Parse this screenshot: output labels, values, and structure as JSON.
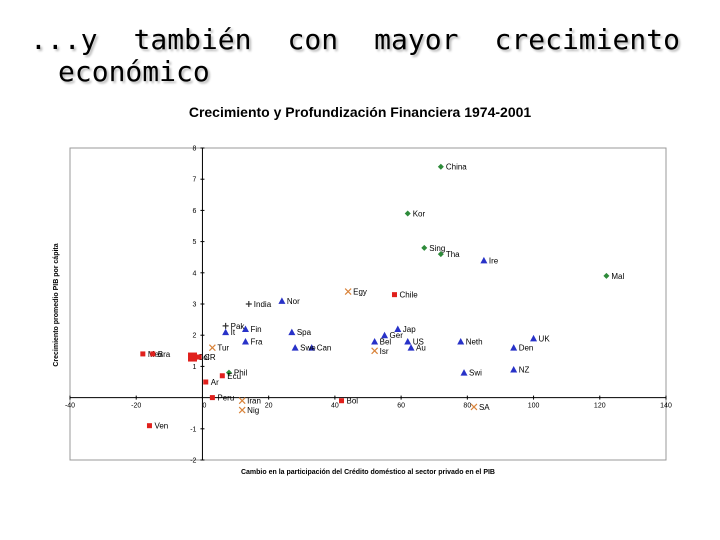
{
  "slide": {
    "title_words": [
      "...y",
      "también",
      "con",
      "mayor",
      "crecimiento"
    ],
    "title_line2": "económico"
  },
  "colors": {
    "diamond": "#2e8b3a",
    "square": "#e0201c",
    "triangle": "#2832c8",
    "plus": "#333333",
    "cross": "#d9843b"
  },
  "chart_data": {
    "type": "scatter",
    "title": "Crecimiento y Profundización Financiera 1974-2001",
    "xlabel": "Cambio en la participación del Crédito doméstico al sector privado en el PIB",
    "ylabel": "Crecimiento promedio PIB por cápita",
    "xlim": [
      -40,
      140
    ],
    "ylim": [
      -2,
      8
    ],
    "xticks": [
      -40,
      -20,
      0,
      20,
      40,
      60,
      80,
      100,
      120,
      140
    ],
    "yticks": [
      -2,
      -1,
      1,
      2,
      3,
      4,
      5,
      6,
      7,
      8
    ],
    "grid": false,
    "legend": "none",
    "points": [
      {
        "label": "China",
        "x": 72,
        "y": 7.4,
        "marker": "diamond"
      },
      {
        "label": "Kor",
        "x": 62,
        "y": 5.9,
        "marker": "diamond"
      },
      {
        "label": "Sing",
        "x": 67,
        "y": 4.8,
        "marker": "diamond"
      },
      {
        "label": "Tha",
        "x": 72,
        "y": 4.6,
        "marker": "diamond"
      },
      {
        "label": "Mal",
        "x": 122,
        "y": 3.9,
        "marker": "diamond"
      },
      {
        "label": "Phil",
        "x": 8,
        "y": 0.8,
        "marker": "diamond"
      },
      {
        "label": "Ire",
        "x": 85,
        "y": 4.4,
        "marker": "triangle"
      },
      {
        "label": "Nor",
        "x": 24,
        "y": 3.1,
        "marker": "triangle"
      },
      {
        "label": "Spa",
        "x": 27,
        "y": 2.1,
        "marker": "triangle"
      },
      {
        "label": "Fin",
        "x": 13,
        "y": 2.2,
        "marker": "triangle"
      },
      {
        "label": "Fra",
        "x": 13,
        "y": 1.8,
        "marker": "triangle"
      },
      {
        "label": "It",
        "x": 7,
        "y": 2.1,
        "marker": "triangle"
      },
      {
        "label": "Can",
        "x": 33,
        "y": 1.6,
        "marker": "triangle"
      },
      {
        "label": "Swe",
        "x": 28,
        "y": 1.6,
        "marker": "triangle"
      },
      {
        "label": "Bel",
        "x": 52,
        "y": 1.8,
        "marker": "triangle"
      },
      {
        "label": "Ger",
        "x": 55,
        "y": 2.0,
        "marker": "triangle"
      },
      {
        "label": "Jap",
        "x": 59,
        "y": 2.2,
        "marker": "triangle"
      },
      {
        "label": "US",
        "x": 62,
        "y": 1.8,
        "marker": "triangle"
      },
      {
        "label": "Au",
        "x": 63,
        "y": 1.6,
        "marker": "triangle"
      },
      {
        "label": "Neth",
        "x": 78,
        "y": 1.8,
        "marker": "triangle"
      },
      {
        "label": "Den",
        "x": 94,
        "y": 1.6,
        "marker": "triangle"
      },
      {
        "label": "UK",
        "x": 100,
        "y": 1.9,
        "marker": "triangle"
      },
      {
        "label": "NZ",
        "x": 94,
        "y": 0.9,
        "marker": "triangle"
      },
      {
        "label": "Swi",
        "x": 79,
        "y": 0.8,
        "marker": "triangle"
      },
      {
        "label": "India",
        "x": 14,
        "y": 3.0,
        "marker": "plus"
      },
      {
        "label": "Pak",
        "x": 7,
        "y": 2.3,
        "marker": "plus"
      },
      {
        "label": "Egy",
        "x": 44,
        "y": 3.4,
        "marker": "cross"
      },
      {
        "label": "Isr",
        "x": 52,
        "y": 1.5,
        "marker": "cross"
      },
      {
        "label": "Tur",
        "x": 3,
        "y": 1.6,
        "marker": "cross"
      },
      {
        "label": "Iran",
        "x": 12,
        "y": -0.1,
        "marker": "cross"
      },
      {
        "label": "Nig",
        "x": 12,
        "y": -0.4,
        "marker": "cross"
      },
      {
        "label": "SA",
        "x": 82,
        "y": -0.3,
        "marker": "cross"
      },
      {
        "label": "Chile",
        "x": 58,
        "y": 3.3,
        "marker": "square"
      },
      {
        "label": "Mex",
        "x": -18,
        "y": 1.4,
        "marker": "square"
      },
      {
        "label": "Bra",
        "x": -15,
        "y": 1.4,
        "marker": "square"
      },
      {
        "label": "Col",
        "x": -3,
        "y": 1.3,
        "marker": "square",
        "size": "large"
      },
      {
        "label": "CR",
        "x": -1,
        "y": 1.3,
        "marker": "square"
      },
      {
        "label": "Ecu",
        "x": 6,
        "y": 0.7,
        "marker": "square"
      },
      {
        "label": "Ar",
        "x": 1,
        "y": 0.5,
        "marker": "square"
      },
      {
        "label": "Peru",
        "x": 3,
        "y": 0.0,
        "marker": "square"
      },
      {
        "label": "Bol",
        "x": 42,
        "y": -0.1,
        "marker": "square"
      },
      {
        "label": "Ven",
        "x": -16,
        "y": -0.9,
        "marker": "square"
      }
    ]
  }
}
